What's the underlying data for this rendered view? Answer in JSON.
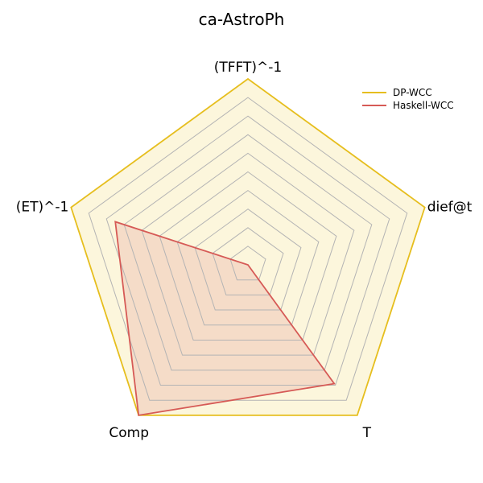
{
  "chart_data": {
    "type": "radar",
    "title": "ca-AstroPh",
    "axes": [
      "(TFFT)^-1",
      "dief@t",
      "T",
      "Comp",
      "(ET)^-1"
    ],
    "range": [
      0,
      1
    ],
    "rings": 9,
    "series": [
      {
        "name": "DP-WCC",
        "values": [
          1.0,
          1.0,
          1.0,
          1.0,
          1.0
        ],
        "color": "#e6be1e",
        "fill": "#fcf6dc"
      },
      {
        "name": "Haskell-WCC",
        "values": [
          0.0,
          0.0,
          0.79,
          1.0,
          0.75
        ],
        "color": "#d65a56",
        "fill": "#f5dcc8"
      }
    ],
    "legend_position": "top-right"
  }
}
